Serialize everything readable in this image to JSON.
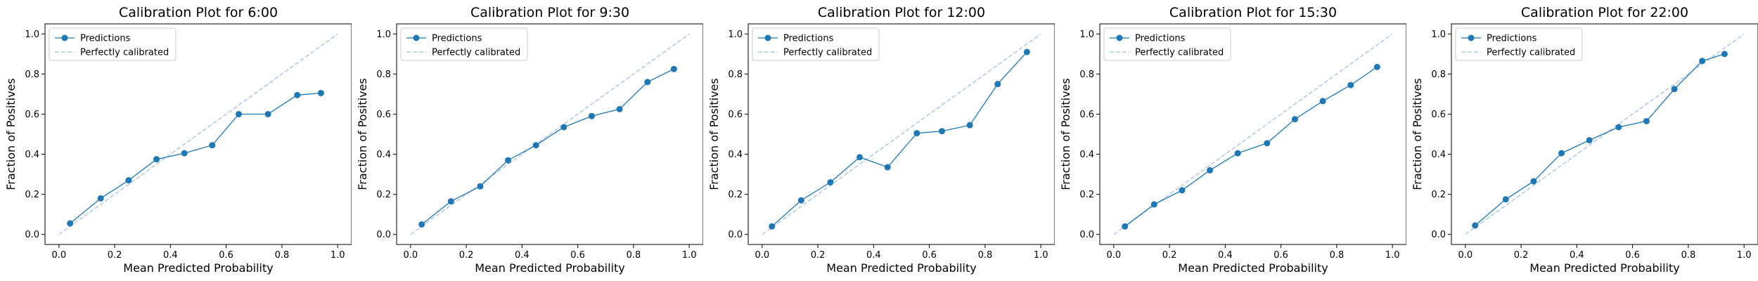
{
  "chart_data": [
    {
      "type": "line",
      "title": "Calibration Plot for 6:00",
      "xlabel": "Mean Predicted Probability",
      "ylabel": "Fraction of Positives",
      "xlim": [
        -0.05,
        1.05
      ],
      "ylim": [
        -0.05,
        1.05
      ],
      "xticks": [
        "0.0",
        "0.2",
        "0.4",
        "0.6",
        "0.8",
        "1.0"
      ],
      "yticks": [
        "0.0",
        "0.2",
        "0.4",
        "0.6",
        "0.8",
        "1.0"
      ],
      "legend_position": "top-left",
      "grid": false,
      "series": [
        {
          "name": "Predictions",
          "color": "#1f77b4",
          "style": "solid-with-markers",
          "x": [
            0.04,
            0.15,
            0.25,
            0.35,
            0.45,
            0.55,
            0.645,
            0.75,
            0.855,
            0.94
          ],
          "y": [
            0.055,
            0.18,
            0.27,
            0.375,
            0.405,
            0.445,
            0.6,
            0.6,
            0.695,
            0.705
          ]
        },
        {
          "name": "Perfectly calibrated",
          "color": "#aec7e8",
          "style": "dashed",
          "x": [
            0,
            1
          ],
          "y": [
            0,
            1
          ]
        }
      ]
    },
    {
      "type": "line",
      "title": "Calibration Plot for 9:30",
      "xlabel": "Mean Predicted Probability",
      "ylabel": "Fraction of Positives",
      "xlim": [
        -0.05,
        1.05
      ],
      "ylim": [
        -0.05,
        1.05
      ],
      "xticks": [
        "0.0",
        "0.2",
        "0.4",
        "0.6",
        "0.8",
        "1.0"
      ],
      "yticks": [
        "0.0",
        "0.2",
        "0.4",
        "0.6",
        "0.8",
        "1.0"
      ],
      "legend_position": "top-left",
      "grid": false,
      "series": [
        {
          "name": "Predictions",
          "color": "#1f77b4",
          "style": "solid-with-markers",
          "x": [
            0.04,
            0.145,
            0.25,
            0.35,
            0.45,
            0.55,
            0.65,
            0.75,
            0.85,
            0.945
          ],
          "y": [
            0.05,
            0.165,
            0.24,
            0.37,
            0.445,
            0.535,
            0.59,
            0.625,
            0.76,
            0.825
          ]
        },
        {
          "name": "Perfectly calibrated",
          "color": "#aec7e8",
          "style": "dashed",
          "x": [
            0,
            1
          ],
          "y": [
            0,
            1
          ]
        }
      ]
    },
    {
      "type": "line",
      "title": "Calibration Plot for 12:00",
      "xlabel": "Mean Predicted Probability",
      "ylabel": "Fraction of Positives",
      "xlim": [
        -0.05,
        1.05
      ],
      "ylim": [
        -0.05,
        1.05
      ],
      "xticks": [
        "0.0",
        "0.2",
        "0.4",
        "0.6",
        "0.8",
        "1.0"
      ],
      "yticks": [
        "0.0",
        "0.2",
        "0.4",
        "0.6",
        "0.8",
        "1.0"
      ],
      "legend_position": "top-left",
      "grid": false,
      "series": [
        {
          "name": "Predictions",
          "color": "#1f77b4",
          "style": "solid-with-markers",
          "x": [
            0.035,
            0.14,
            0.245,
            0.35,
            0.45,
            0.555,
            0.645,
            0.745,
            0.845,
            0.95
          ],
          "y": [
            0.04,
            0.17,
            0.26,
            0.385,
            0.335,
            0.505,
            0.515,
            0.545,
            0.75,
            0.91
          ]
        },
        {
          "name": "Perfectly calibrated",
          "color": "#aec7e8",
          "style": "dashed",
          "x": [
            0,
            1
          ],
          "y": [
            0,
            1
          ]
        }
      ]
    },
    {
      "type": "line",
      "title": "Calibration Plot for 15:30",
      "xlabel": "Mean Predicted Probability",
      "ylabel": "Fraction of Positives",
      "xlim": [
        -0.05,
        1.05
      ],
      "ylim": [
        -0.05,
        1.05
      ],
      "xticks": [
        "0.0",
        "0.2",
        "0.4",
        "0.6",
        "0.8",
        "1.0"
      ],
      "yticks": [
        "0.0",
        "0.2",
        "0.4",
        "0.6",
        "0.8",
        "1.0"
      ],
      "legend_position": "top-left",
      "grid": false,
      "series": [
        {
          "name": "Predictions",
          "color": "#1f77b4",
          "style": "solid-with-markers",
          "x": [
            0.04,
            0.145,
            0.245,
            0.345,
            0.445,
            0.55,
            0.65,
            0.75,
            0.85,
            0.945
          ],
          "y": [
            0.04,
            0.15,
            0.22,
            0.32,
            0.405,
            0.455,
            0.575,
            0.665,
            0.745,
            0.835
          ]
        },
        {
          "name": "Perfectly calibrated",
          "color": "#aec7e8",
          "style": "dashed",
          "x": [
            0,
            1
          ],
          "y": [
            0,
            1
          ]
        }
      ]
    },
    {
      "type": "line",
      "title": "Calibration Plot for 22:00",
      "xlabel": "Mean Predicted Probability",
      "ylabel": "Fraction of Positives",
      "xlim": [
        -0.05,
        1.05
      ],
      "ylim": [
        -0.05,
        1.05
      ],
      "xticks": [
        "0.0",
        "0.2",
        "0.4",
        "0.6",
        "0.8",
        "1.0"
      ],
      "yticks": [
        "0.0",
        "0.2",
        "0.4",
        "0.6",
        "0.8",
        "1.0"
      ],
      "legend_position": "top-left",
      "grid": false,
      "series": [
        {
          "name": "Predictions",
          "color": "#1f77b4",
          "style": "solid-with-markers",
          "x": [
            0.035,
            0.145,
            0.245,
            0.345,
            0.445,
            0.55,
            0.65,
            0.75,
            0.85,
            0.93
          ],
          "y": [
            0.045,
            0.175,
            0.265,
            0.405,
            0.47,
            0.535,
            0.565,
            0.725,
            0.865,
            0.9
          ]
        },
        {
          "name": "Perfectly calibrated",
          "color": "#aec7e8",
          "style": "dashed",
          "x": [
            0,
            1
          ],
          "y": [
            0,
            1
          ]
        }
      ]
    }
  ]
}
